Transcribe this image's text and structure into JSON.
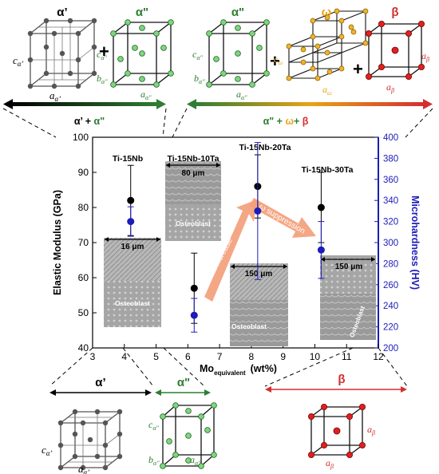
{
  "phases": {
    "alpha_prime": {
      "label": "α’",
      "lattice": [
        "c",
        "α’",
        "a",
        "α’"
      ]
    },
    "alpha_dprime": {
      "label": "α\"",
      "lattice": [
        "c",
        "α\"",
        "b",
        "α\"",
        "a",
        "α\""
      ]
    },
    "omega": {
      "label": "ω",
      "lattice": [
        "c",
        "ω",
        "a",
        "ω"
      ]
    },
    "beta": {
      "label": "β",
      "lattice": [
        "a",
        "β",
        "a",
        "β"
      ]
    }
  },
  "plus_sign": "+",
  "range_labels": {
    "left": {
      "parts": [
        {
          "text": "α’ + ",
          "color": "#000000"
        },
        {
          "text": "α\"",
          "color": "#2e7d32"
        }
      ]
    },
    "right": {
      "parts": [
        {
          "text": "α\" + ",
          "color": "#2e7d32"
        },
        {
          "text": "ω",
          "color": "#e8a317"
        },
        {
          "text": "+ ",
          "color": "#2e7d32"
        },
        {
          "text": "β",
          "color": "#d32f2f"
        }
      ]
    }
  },
  "colors": {
    "black": "#000000",
    "green": "#2e7d32",
    "orange": "#e8a317",
    "red": "#d32f2f",
    "blue": "#1c1cb8",
    "arrow": "#f3a07a"
  },
  "annotations": {
    "omega_increase": "ω increase",
    "omega_suppression": "ω suppression"
  },
  "micrographs": [
    {
      "scale": "16 μm",
      "caption": "Osteoblast"
    },
    {
      "scale": "80 μm",
      "caption": "Osteoblast"
    },
    {
      "scale": "150 μm",
      "caption": "Osteoblast"
    },
    {
      "scale": "150 μm",
      "caption": "Osteoblast"
    }
  ],
  "chart_data": {
    "type": "scatter",
    "xlabel_main": "Mo",
    "xlabel_sub": "equivalent",
    "xlabel_unit": "(wt%)",
    "ylabel": "Elastic Modulus (GPa)",
    "y2label": "Microhardness (HV)",
    "xlim": [
      3,
      12
    ],
    "ylim": [
      40,
      100
    ],
    "y2lim": [
      200,
      400
    ],
    "xticks": [
      3,
      4,
      5,
      6,
      7,
      8,
      9,
      10,
      11,
      12
    ],
    "yticks": [
      40,
      50,
      60,
      70,
      80,
      90,
      100
    ],
    "y2ticks": [
      200,
      220,
      240,
      260,
      280,
      300,
      320,
      340,
      360,
      380,
      400
    ],
    "categories": [
      "Ti-15Nb",
      "Ti-15Nb-10Ta",
      "Ti-15Nb-20Ta",
      "Ti-15Nb-30Ta"
    ],
    "series": [
      {
        "axis": "left",
        "color": "#000000",
        "points": [
          {
            "x": 4.2,
            "y": 82,
            "err": 10
          },
          {
            "x": 6.2,
            "y": 57,
            "err": 10
          },
          {
            "x": 8.2,
            "y": 86,
            "err": 9
          },
          {
            "x": 10.2,
            "y": 80,
            "err": 10
          }
        ]
      },
      {
        "axis": "right",
        "color": "#1c1cb8",
        "points": [
          {
            "x": 4.2,
            "y": 320,
            "err": 14
          },
          {
            "x": 6.2,
            "y": 231,
            "err": 16
          },
          {
            "x": 8.2,
            "y": 330,
            "err": 65
          },
          {
            "x": 10.2,
            "y": 293,
            "err": 27
          }
        ]
      }
    ]
  }
}
